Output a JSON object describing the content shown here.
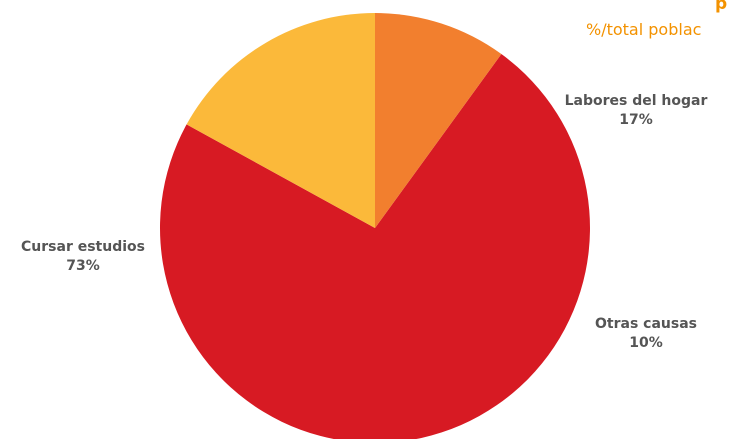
{
  "colors": {
    "accent": "#F39200",
    "label_text": "#555555"
  },
  "chart_data": {
    "type": "pie",
    "title": "p",
    "subtitle": "%/total poblac",
    "slices": [
      {
        "label": "Cursar estudios",
        "value": 73,
        "value_label": "73%",
        "color": "#D71A23"
      },
      {
        "label": "Labores del hogar",
        "value": 17,
        "value_label": "17%",
        "color": "#FBB93A"
      },
      {
        "label": "Otras causas",
        "value": 10,
        "value_label": "10%",
        "color": "#F27F2E"
      }
    ]
  }
}
